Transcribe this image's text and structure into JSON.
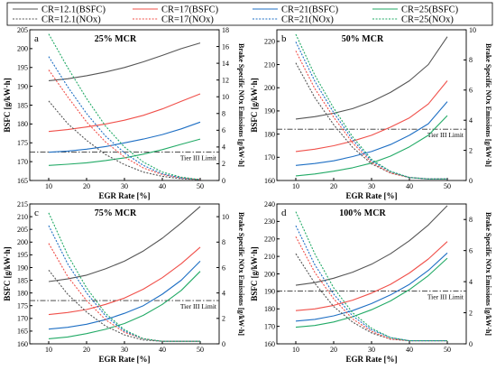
{
  "legend": {
    "entries": [
      {
        "label": "CR=12.1(BSFC)",
        "color": "#555555",
        "dash": "solid"
      },
      {
        "label": "CR=17(BSFC)",
        "color": "#f0504a",
        "dash": "solid"
      },
      {
        "label": "CR=21(BSFC)",
        "color": "#1e6fc4",
        "dash": "solid"
      },
      {
        "label": "CR=25(BSFC)",
        "color": "#22aa66",
        "dash": "solid"
      },
      {
        "label": "CR=12.1(NOx)",
        "color": "#555555",
        "dash": "dotted"
      },
      {
        "label": "CR=17(NOx)",
        "color": "#f0504a",
        "dash": "dotted"
      },
      {
        "label": "CR=21(NOx)",
        "color": "#1e6fc4",
        "dash": "dotted"
      },
      {
        "label": "CR=25(NOx)",
        "color": "#22aa66",
        "dash": "dotted"
      }
    ]
  },
  "chart_data": [
    {
      "type": "line",
      "panel_letter": "a",
      "title": "25% MCR",
      "xlabel": "EGR Rate [%]",
      "ylabel": "BSFC [g/kW·h]",
      "y2label": "Brake Specific NOx Emissions [g/kW·h]",
      "xlim": [
        5,
        55
      ],
      "xticks": [
        10,
        20,
        30,
        40,
        50
      ],
      "ylim": [
        165,
        205
      ],
      "yticks": [
        165,
        170,
        175,
        180,
        185,
        190,
        195,
        200,
        205
      ],
      "y2lim": [
        0,
        18
      ],
      "y2ticks": [
        0,
        2,
        4,
        6,
        8,
        10,
        12,
        14,
        16,
        18
      ],
      "tier_limit": {
        "label": "Tier III Limit",
        "y2": 3.4
      },
      "x": [
        10,
        15,
        20,
        25,
        30,
        35,
        40,
        45,
        50
      ],
      "series": [
        {
          "name": "CR=12.1(BSFC)",
          "axis": "left",
          "values": [
            191.5,
            192.0,
            192.8,
            193.8,
            195.0,
            196.5,
            198.2,
            200.0,
            201.5
          ]
        },
        {
          "name": "CR=17(BSFC)",
          "axis": "left",
          "values": [
            178.0,
            178.5,
            179.2,
            180.0,
            181.0,
            182.3,
            184.0,
            186.0,
            188.0
          ]
        },
        {
          "name": "CR=21(BSFC)",
          "axis": "left",
          "values": [
            172.5,
            172.8,
            173.3,
            174.0,
            175.0,
            176.0,
            177.2,
            178.7,
            180.5
          ]
        },
        {
          "name": "CR=25(BSFC)",
          "axis": "left",
          "values": [
            169.0,
            169.3,
            169.7,
            170.3,
            171.0,
            172.0,
            173.2,
            174.6,
            176.0
          ]
        },
        {
          "name": "CR=12.1(NOx)",
          "axis": "right",
          "values": [
            9.5,
            6.8,
            4.8,
            3.1,
            1.9,
            1.0,
            0.5,
            0.2,
            0.1
          ]
        },
        {
          "name": "CR=17(NOx)",
          "axis": "right",
          "values": [
            13.2,
            10.0,
            7.0,
            4.6,
            2.8,
            1.5,
            0.7,
            0.3,
            0.1
          ]
        },
        {
          "name": "CR=21(NOx)",
          "axis": "right",
          "values": [
            14.8,
            11.2,
            8.0,
            5.3,
            3.3,
            1.8,
            0.8,
            0.3,
            0.1
          ]
        },
        {
          "name": "CR=25(NOx)",
          "axis": "right",
          "values": [
            17.5,
            13.5,
            9.8,
            6.5,
            4.0,
            2.2,
            1.0,
            0.4,
            0.1
          ]
        }
      ]
    },
    {
      "type": "line",
      "panel_letter": "b",
      "title": "50% MCR",
      "xlabel": "EGR Rate [%]",
      "ylabel": "BSFC [g/kW·h]",
      "y2label": "Brake Specific NOx Emissions [g/kW·h]",
      "xlim": [
        5,
        55
      ],
      "xticks": [
        10,
        20,
        30,
        40,
        50
      ],
      "ylim": [
        160,
        225
      ],
      "yticks": [
        160,
        170,
        180,
        190,
        200,
        210,
        220
      ],
      "y2lim": [
        0,
        10
      ],
      "y2ticks": [
        0,
        2,
        4,
        6,
        8,
        10
      ],
      "tier_limit": {
        "label": "Tier III Limit",
        "y2": 3.4
      },
      "x": [
        10,
        15,
        20,
        25,
        30,
        35,
        40,
        45,
        50
      ],
      "series": [
        {
          "name": "CR=12.1(BSFC)",
          "axis": "left",
          "values": [
            186.5,
            187.5,
            189.0,
            191.0,
            194.0,
            198.0,
            203.0,
            210.0,
            222.0
          ]
        },
        {
          "name": "CR=17(BSFC)",
          "axis": "left",
          "values": [
            172.5,
            173.5,
            175.0,
            177.0,
            179.5,
            183.0,
            187.0,
            193.0,
            203.0
          ]
        },
        {
          "name": "CR=21(BSFC)",
          "axis": "left",
          "values": [
            166.5,
            167.3,
            168.5,
            170.3,
            172.5,
            175.5,
            179.5,
            184.5,
            194.0
          ]
        },
        {
          "name": "CR=25(BSFC)",
          "axis": "left",
          "values": [
            162.0,
            162.8,
            164.0,
            165.5,
            167.5,
            170.5,
            174.5,
            179.5,
            188.0
          ]
        },
        {
          "name": "CR=12.1(NOx)",
          "axis": "right",
          "values": [
            7.8,
            5.5,
            3.7,
            2.2,
            1.1,
            0.5,
            0.2,
            0.1,
            0.1
          ]
        },
        {
          "name": "CR=17(NOx)",
          "axis": "right",
          "values": [
            8.6,
            6.1,
            4.2,
            2.5,
            1.2,
            0.5,
            0.2,
            0.1,
            0.1
          ]
        },
        {
          "name": "CR=21(NOx)",
          "axis": "right",
          "values": [
            9.2,
            6.6,
            4.5,
            2.7,
            1.3,
            0.6,
            0.2,
            0.1,
            0.1
          ]
        },
        {
          "name": "CR=25(NOx)",
          "axis": "right",
          "values": [
            9.7,
            7.0,
            4.8,
            2.9,
            1.4,
            0.6,
            0.2,
            0.1,
            0.1
          ]
        }
      ]
    },
    {
      "type": "line",
      "panel_letter": "c",
      "title": "75% MCR",
      "xlabel": "EGR Rate [%]",
      "ylabel": "BSFC [g/kW·h]",
      "y2label": "Brake Specific NOx Emissions [g/kW·h]",
      "xlim": [
        5,
        55
      ],
      "xticks": [
        10,
        20,
        30,
        40,
        50
      ],
      "ylim": [
        160,
        215
      ],
      "yticks": [
        160,
        165,
        170,
        175,
        180,
        185,
        190,
        195,
        200,
        205,
        210,
        215
      ],
      "y2lim": [
        0,
        11
      ],
      "y2ticks": [
        0,
        2,
        4,
        6,
        8,
        10
      ],
      "tier_limit": {
        "label": "Tier III Limit",
        "y2": 3.4
      },
      "x": [
        10,
        15,
        20,
        25,
        30,
        35,
        40,
        45,
        50
      ],
      "series": [
        {
          "name": "CR=12.1(BSFC)",
          "axis": "left",
          "values": [
            184.5,
            185.5,
            187.0,
            189.5,
            192.5,
            196.5,
            201.5,
            207.5,
            214.0
          ]
        },
        {
          "name": "CR=17(BSFC)",
          "axis": "left",
          "values": [
            171.5,
            172.3,
            173.5,
            175.5,
            178.0,
            181.5,
            186.0,
            191.5,
            198.0
          ]
        },
        {
          "name": "CR=21(BSFC)",
          "axis": "left",
          "values": [
            165.8,
            166.5,
            167.7,
            169.5,
            172.0,
            175.0,
            179.5,
            185.0,
            192.5
          ]
        },
        {
          "name": "CR=25(BSFC)",
          "axis": "left",
          "values": [
            162.0,
            162.7,
            164.0,
            165.7,
            168.0,
            171.2,
            175.5,
            181.0,
            188.5
          ]
        },
        {
          "name": "CR=12.1(NOx)",
          "axis": "right",
          "values": [
            5.8,
            3.9,
            2.5,
            1.4,
            0.7,
            0.3,
            0.2,
            0.2,
            0.2
          ]
        },
        {
          "name": "CR=17(NOx)",
          "axis": "right",
          "values": [
            7.9,
            5.3,
            3.4,
            1.9,
            0.9,
            0.4,
            0.2,
            0.2,
            0.2
          ]
        },
        {
          "name": "CR=21(NOx)",
          "axis": "right",
          "values": [
            9.3,
            6.3,
            4.0,
            2.2,
            1.0,
            0.4,
            0.2,
            0.2,
            0.2
          ]
        },
        {
          "name": "CR=25(NOx)",
          "axis": "right",
          "values": [
            10.3,
            7.0,
            4.4,
            2.4,
            1.1,
            0.4,
            0.2,
            0.2,
            0.2
          ]
        }
      ]
    },
    {
      "type": "line",
      "panel_letter": "d",
      "title": "100% MCR",
      "xlabel": "EGR Rate [%]",
      "ylabel": "BSFC [g/kW·h]",
      "y2label": "Brake Specific NOx Emissions [g/kW·h]",
      "xlim": [
        5,
        55
      ],
      "xticks": [
        10,
        20,
        30,
        40,
        50
      ],
      "ylim": [
        160,
        240
      ],
      "yticks": [
        160,
        170,
        180,
        190,
        200,
        210,
        220,
        230,
        240
      ],
      "y2lim": [
        0,
        9
      ],
      "y2ticks": [
        0,
        2,
        4,
        6,
        8
      ],
      "tier_limit": {
        "label": "Tier III Limit",
        "y2": 3.4
      },
      "x": [
        10,
        15,
        20,
        25,
        30,
        35,
        40,
        45,
        50
      ],
      "series": [
        {
          "name": "CR=12.1(BSFC)",
          "axis": "left",
          "values": [
            193.5,
            195.0,
            197.5,
            201.0,
            205.5,
            211.5,
            219.0,
            228.0,
            239.0
          ]
        },
        {
          "name": "CR=17(BSFC)",
          "axis": "left",
          "values": [
            179.0,
            180.0,
            182.0,
            185.0,
            189.0,
            194.0,
            200.5,
            208.5,
            218.5
          ]
        },
        {
          "name": "CR=21(BSFC)",
          "axis": "left",
          "values": [
            173.0,
            174.0,
            176.0,
            179.0,
            183.0,
            188.0,
            194.0,
            202.0,
            212.0
          ]
        },
        {
          "name": "CR=25(BSFC)",
          "axis": "left",
          "values": [
            169.5,
            170.5,
            172.5,
            175.5,
            179.5,
            184.5,
            191.0,
            199.0,
            209.0
          ]
        },
        {
          "name": "CR=12.1(NOx)",
          "axis": "right",
          "values": [
            5.8,
            3.9,
            2.4,
            1.4,
            0.7,
            0.3,
            0.2,
            0.2,
            0.2
          ]
        },
        {
          "name": "CR=17(NOx)",
          "axis": "right",
          "values": [
            6.9,
            4.6,
            2.9,
            1.6,
            0.8,
            0.3,
            0.2,
            0.2,
            0.2
          ]
        },
        {
          "name": "CR=21(NOx)",
          "axis": "right",
          "values": [
            7.6,
            5.1,
            3.2,
            1.8,
            0.9,
            0.4,
            0.2,
            0.2,
            0.2
          ]
        },
        {
          "name": "CR=25(NOx)",
          "axis": "right",
          "values": [
            8.5,
            5.8,
            3.6,
            2.0,
            1.0,
            0.4,
            0.2,
            0.2,
            0.2
          ]
        }
      ]
    }
  ]
}
